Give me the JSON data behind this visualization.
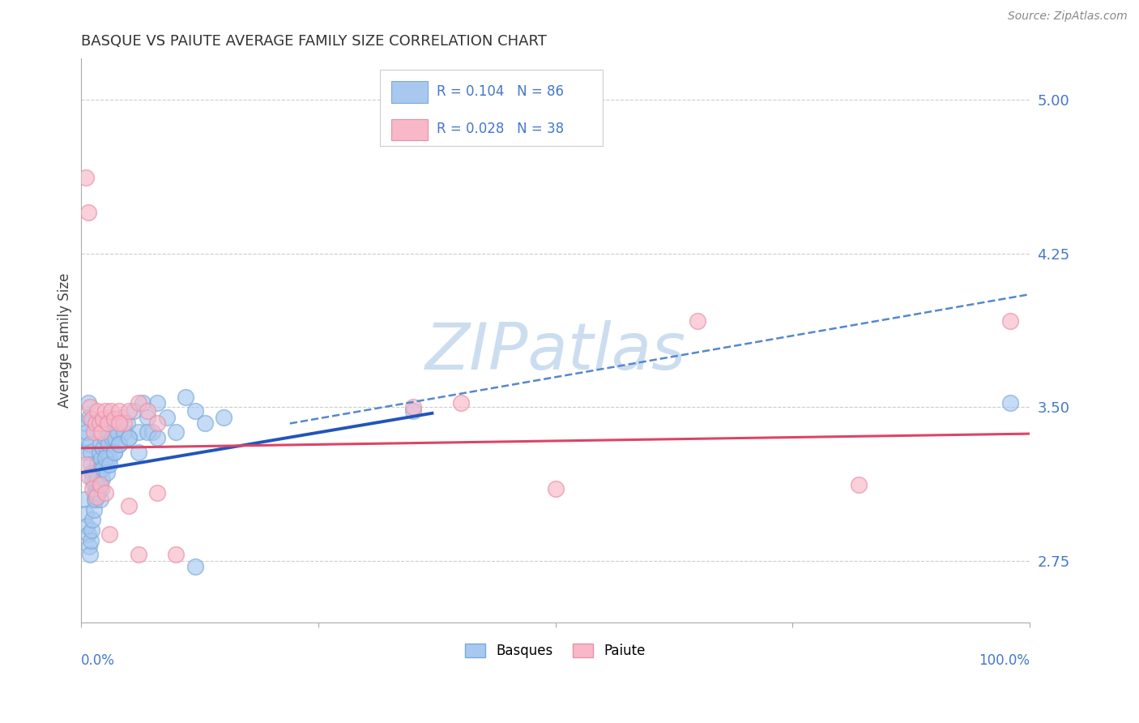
{
  "title": "BASQUE VS PAIUTE AVERAGE FAMILY SIZE CORRELATION CHART",
  "source_text": "Source: ZipAtlas.com",
  "ylabel": "Average Family Size",
  "yticks": [
    2.75,
    3.5,
    4.25,
    5.0
  ],
  "xlim": [
    0.0,
    1.0
  ],
  "ylim": [
    2.45,
    5.2
  ],
  "basque_color_face": "#a8c8f0",
  "basque_color_edge": "#7aaad8",
  "paiute_color_face": "#f8b8c8",
  "paiute_color_edge": "#e890a8",
  "basque_line_color": "#2255bb",
  "paiute_line_color": "#dd4466",
  "dashed_line_color": "#5588cc",
  "grid_color": "#cccccc",
  "title_color": "#333333",
  "axis_label_color": "#4477cc",
  "watermark_color": "#ccddf0",
  "legend_text_color": "#4477cc",
  "basque_trend_x0": 0.0,
  "basque_trend_x1": 0.37,
  "basque_trend_y0": 3.18,
  "basque_trend_y1": 3.47,
  "paiute_trend_x0": 0.0,
  "paiute_trend_x1": 1.0,
  "paiute_trend_y0": 3.3,
  "paiute_trend_y1": 3.37,
  "dashed_trend_x0": 0.22,
  "dashed_trend_x1": 1.0,
  "dashed_trend_y0": 3.42,
  "dashed_trend_y1": 4.05,
  "basque_x": [
    0.003,
    0.004,
    0.005,
    0.006,
    0.007,
    0.008,
    0.009,
    0.01,
    0.01,
    0.011,
    0.012,
    0.013,
    0.014,
    0.015,
    0.015,
    0.016,
    0.017,
    0.018,
    0.019,
    0.02,
    0.02,
    0.021,
    0.022,
    0.023,
    0.024,
    0.025,
    0.026,
    0.027,
    0.028,
    0.029,
    0.03,
    0.03,
    0.032,
    0.033,
    0.035,
    0.036,
    0.038,
    0.04,
    0.042,
    0.045,
    0.048,
    0.05,
    0.055,
    0.06,
    0.065,
    0.07,
    0.075,
    0.08,
    0.09,
    0.1,
    0.11,
    0.12,
    0.13,
    0.15,
    0.004,
    0.005,
    0.006,
    0.007,
    0.008,
    0.009,
    0.01,
    0.011,
    0.012,
    0.013,
    0.014,
    0.015,
    0.016,
    0.017,
    0.018,
    0.019,
    0.02,
    0.021,
    0.022,
    0.023,
    0.025,
    0.027,
    0.03,
    0.035,
    0.04,
    0.05,
    0.06,
    0.07,
    0.08,
    0.12,
    0.35,
    0.98
  ],
  "basque_y": [
    3.28,
    3.35,
    3.42,
    3.38,
    3.52,
    3.45,
    3.32,
    3.28,
    3.22,
    3.18,
    3.15,
    3.12,
    3.08,
    3.05,
    3.18,
    3.1,
    3.22,
    3.15,
    3.28,
    3.2,
    3.32,
    3.25,
    3.38,
    3.3,
    3.42,
    3.35,
    3.22,
    3.28,
    3.38,
    3.32,
    3.45,
    3.25,
    3.35,
    3.42,
    3.28,
    3.35,
    3.38,
    3.32,
    3.45,
    3.38,
    3.42,
    3.35,
    3.48,
    3.38,
    3.52,
    3.45,
    3.38,
    3.52,
    3.45,
    3.38,
    3.55,
    3.48,
    3.42,
    3.45,
    3.05,
    2.98,
    2.92,
    2.88,
    2.82,
    2.78,
    2.85,
    2.9,
    2.95,
    3.0,
    3.05,
    3.08,
    3.12,
    3.15,
    3.08,
    3.12,
    3.05,
    3.1,
    3.15,
    3.2,
    3.25,
    3.18,
    3.22,
    3.28,
    3.32,
    3.35,
    3.28,
    3.38,
    3.35,
    2.72,
    3.48,
    3.52
  ],
  "paiute_x": [
    0.005,
    0.007,
    0.009,
    0.011,
    0.013,
    0.015,
    0.017,
    0.019,
    0.021,
    0.023,
    0.025,
    0.028,
    0.031,
    0.035,
    0.04,
    0.045,
    0.05,
    0.06,
    0.07,
    0.08,
    0.005,
    0.008,
    0.012,
    0.016,
    0.02,
    0.025,
    0.03,
    0.04,
    0.05,
    0.06,
    0.08,
    0.1,
    0.35,
    0.4,
    0.5,
    0.65,
    0.82,
    0.98
  ],
  "paiute_y": [
    4.62,
    4.45,
    3.5,
    3.44,
    3.38,
    3.42,
    3.48,
    3.42,
    3.38,
    3.44,
    3.48,
    3.42,
    3.48,
    3.44,
    3.48,
    3.42,
    3.48,
    3.52,
    3.48,
    3.42,
    3.22,
    3.16,
    3.1,
    3.06,
    3.12,
    3.08,
    2.88,
    3.42,
    3.02,
    2.78,
    3.08,
    2.78,
    3.5,
    3.52,
    3.1,
    3.92,
    3.12,
    3.92
  ]
}
